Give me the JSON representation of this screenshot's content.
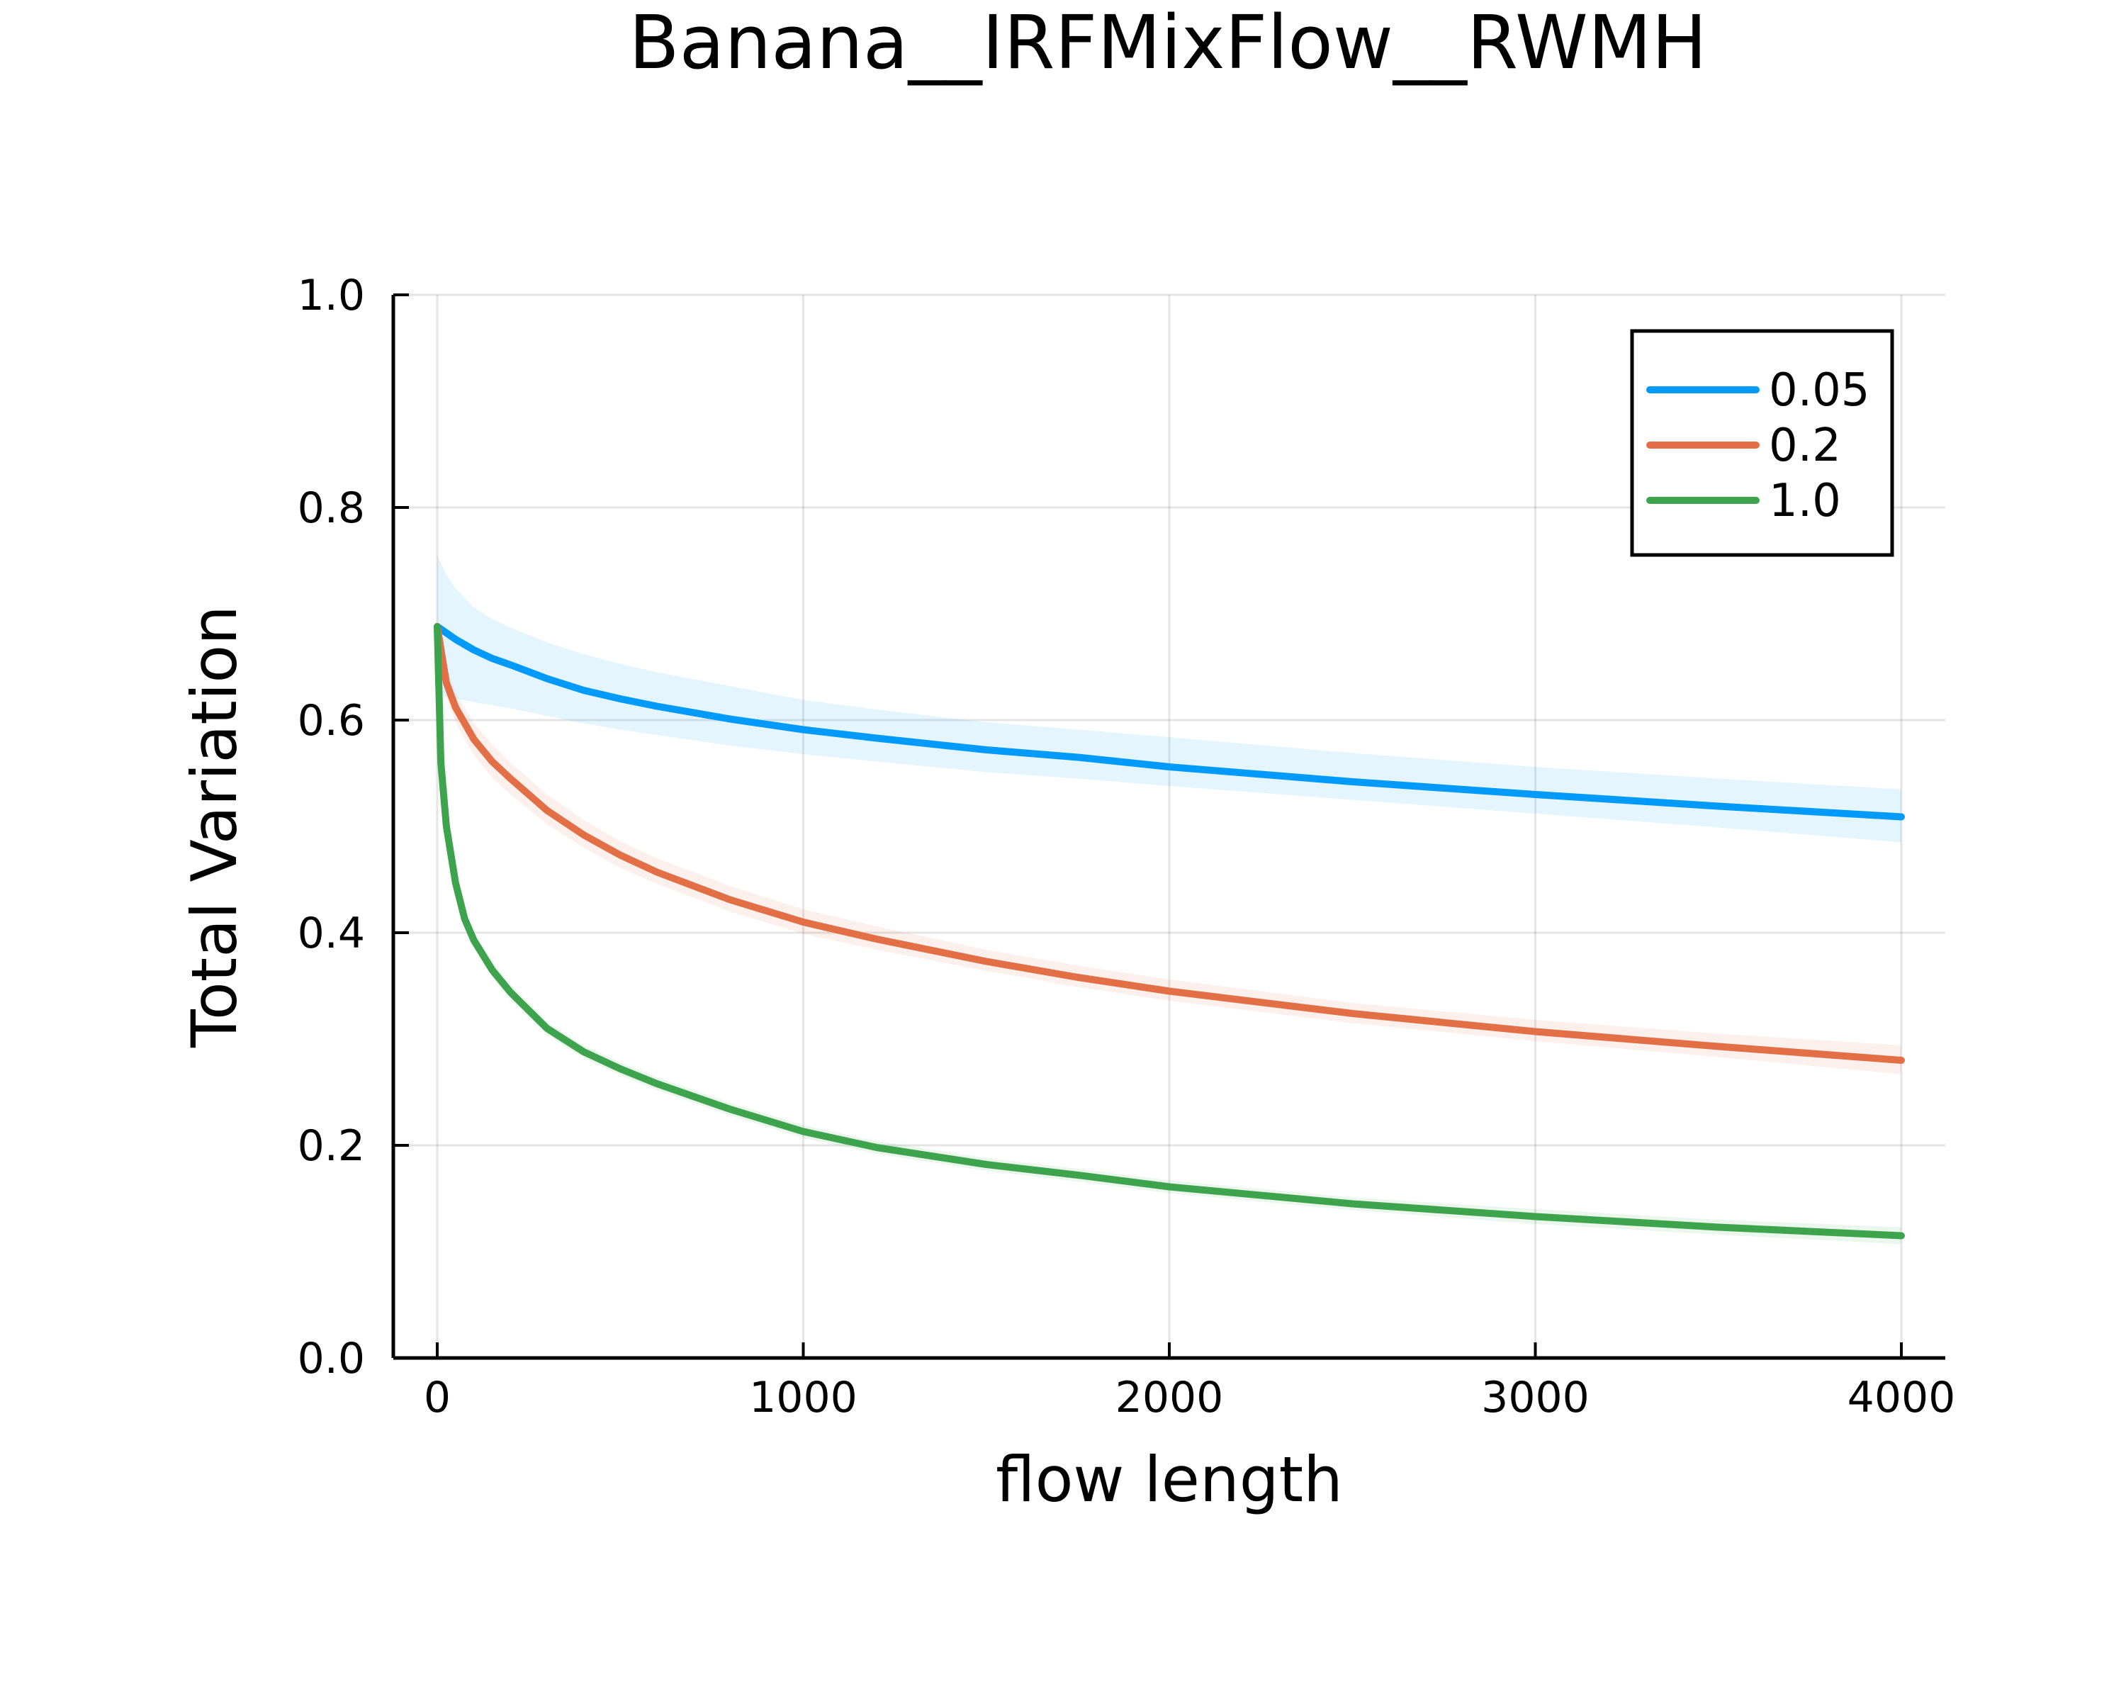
{
  "chart_data": {
    "type": "line",
    "title": "Banana__IRFMixFlow__RWMH",
    "xlabel": "flow length",
    "ylabel": "Total Variation",
    "xlim": [
      -120,
      4120
    ],
    "ylim": [
      0.0,
      1.0
    ],
    "xticks": [
      0,
      1000,
      2000,
      3000,
      4000
    ],
    "xtick_labels": [
      "0",
      "1000",
      "2000",
      "3000",
      "4000"
    ],
    "yticks": [
      0.0,
      0.2,
      0.4,
      0.6,
      0.8,
      1.0
    ],
    "ytick_labels": [
      "0.0",
      "0.2",
      "0.4",
      "0.6",
      "0.8",
      "1.0"
    ],
    "grid": true,
    "legend_position": "top-right",
    "series": [
      {
        "name": "0.05",
        "color": "#009AFA",
        "x": [
          0,
          25,
          50,
          100,
          150,
          200,
          300,
          400,
          500,
          600,
          800,
          1000,
          1200,
          1500,
          1750,
          2000,
          2500,
          3000,
          3500,
          4000
        ],
        "y": [
          0.688,
          0.682,
          0.676,
          0.666,
          0.658,
          0.652,
          0.639,
          0.628,
          0.62,
          0.613,
          0.601,
          0.591,
          0.583,
          0.572,
          0.565,
          0.556,
          0.542,
          0.53,
          0.519,
          0.509
        ],
        "lower": [
          0.625,
          0.622,
          0.62,
          0.617,
          0.614,
          0.611,
          0.604,
          0.597,
          0.591,
          0.586,
          0.576,
          0.568,
          0.561,
          0.551,
          0.545,
          0.538,
          0.525,
          0.512,
          0.499,
          0.485
        ],
        "upper": [
          0.755,
          0.737,
          0.724,
          0.706,
          0.695,
          0.687,
          0.673,
          0.662,
          0.653,
          0.645,
          0.632,
          0.619,
          0.61,
          0.598,
          0.591,
          0.584,
          0.569,
          0.556,
          0.545,
          0.535
        ]
      },
      {
        "name": "0.2",
        "color": "#E26F46",
        "x": [
          0,
          25,
          50,
          100,
          150,
          200,
          300,
          400,
          500,
          600,
          800,
          1000,
          1200,
          1500,
          1750,
          2000,
          2500,
          3000,
          3500,
          4000
        ],
        "y": [
          0.688,
          0.635,
          0.612,
          0.582,
          0.561,
          0.545,
          0.515,
          0.492,
          0.473,
          0.457,
          0.431,
          0.41,
          0.394,
          0.373,
          0.358,
          0.345,
          0.324,
          0.307,
          0.293,
          0.28
        ],
        "lower": [
          0.688,
          0.62,
          0.598,
          0.567,
          0.546,
          0.53,
          0.502,
          0.48,
          0.461,
          0.446,
          0.42,
          0.399,
          0.384,
          0.364,
          0.349,
          0.336,
          0.315,
          0.298,
          0.283,
          0.267
        ],
        "upper": [
          0.688,
          0.65,
          0.626,
          0.597,
          0.577,
          0.56,
          0.53,
          0.506,
          0.486,
          0.47,
          0.444,
          0.422,
          0.406,
          0.384,
          0.369,
          0.356,
          0.334,
          0.318,
          0.305,
          0.294
        ]
      },
      {
        "name": "1.0",
        "color": "#3DA44D",
        "x": [
          0,
          10,
          25,
          50,
          75,
          100,
          150,
          200,
          300,
          400,
          500,
          600,
          800,
          1000,
          1200,
          1500,
          1750,
          2000,
          2500,
          3000,
          3500,
          4000
        ],
        "y": [
          0.688,
          0.56,
          0.5,
          0.447,
          0.413,
          0.393,
          0.365,
          0.344,
          0.31,
          0.288,
          0.272,
          0.258,
          0.234,
          0.213,
          0.198,
          0.182,
          0.172,
          0.161,
          0.145,
          0.133,
          0.123,
          0.115
        ],
        "lower": [
          0.688,
          0.548,
          0.489,
          0.438,
          0.405,
          0.386,
          0.358,
          0.337,
          0.304,
          0.282,
          0.266,
          0.252,
          0.228,
          0.207,
          0.192,
          0.176,
          0.166,
          0.155,
          0.139,
          0.126,
          0.116,
          0.107
        ],
        "upper": [
          0.688,
          0.572,
          0.511,
          0.456,
          0.421,
          0.4,
          0.372,
          0.351,
          0.316,
          0.294,
          0.278,
          0.264,
          0.24,
          0.219,
          0.204,
          0.188,
          0.178,
          0.167,
          0.151,
          0.14,
          0.13,
          0.123
        ]
      }
    ]
  }
}
